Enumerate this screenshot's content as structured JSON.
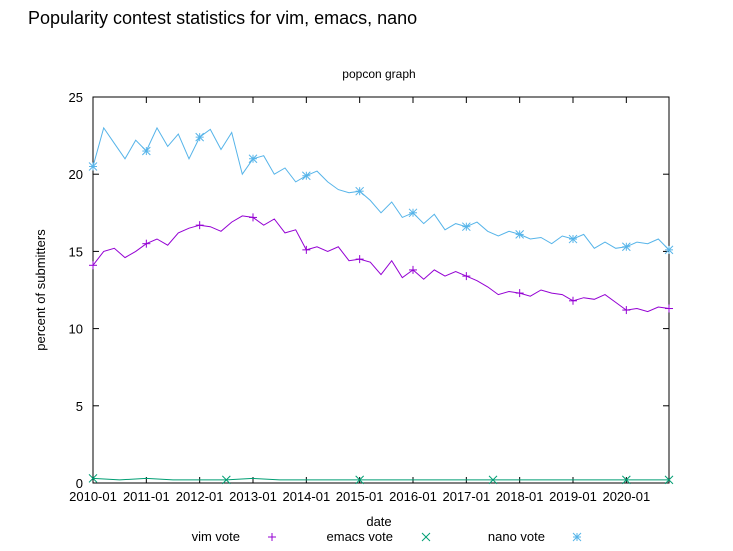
{
  "page": {
    "heading": "Popularity contest statistics for vim, emacs, nano"
  },
  "chart_data": {
    "type": "line",
    "title": "popcon graph",
    "xlabel": "date",
    "ylabel": "percent of submitters",
    "ylim": [
      0,
      25
    ],
    "xlim": [
      2010.0,
      2020.8
    ],
    "grid": false,
    "legend_placement": "bottom",
    "yticks": [
      0,
      5,
      10,
      15,
      20,
      25
    ],
    "xticks": [
      {
        "value": 2010,
        "label": "2010-01"
      },
      {
        "value": 2011,
        "label": "2011-01"
      },
      {
        "value": 2012,
        "label": "2012-01"
      },
      {
        "value": 2013,
        "label": "2013-01"
      },
      {
        "value": 2014,
        "label": "2014-01"
      },
      {
        "value": 2015,
        "label": "2015-01"
      },
      {
        "value": 2016,
        "label": "2016-01"
      },
      {
        "value": 2017,
        "label": "2017-01"
      },
      {
        "value": 2018,
        "label": "2018-01"
      },
      {
        "value": 2019,
        "label": "2019-01"
      },
      {
        "value": 2020,
        "label": "2020-01"
      }
    ],
    "series": [
      {
        "name": "vim vote",
        "color": "#9400d3",
        "marker": "plus",
        "x": [
          2010.0,
          2010.2,
          2010.4,
          2010.6,
          2010.8,
          2011.0,
          2011.2,
          2011.4,
          2011.6,
          2011.8,
          2012.0,
          2012.2,
          2012.4,
          2012.6,
          2012.8,
          2013.0,
          2013.2,
          2013.4,
          2013.6,
          2013.8,
          2014.0,
          2014.2,
          2014.4,
          2014.6,
          2014.8,
          2015.0,
          2015.2,
          2015.4,
          2015.6,
          2015.8,
          2016.0,
          2016.2,
          2016.4,
          2016.6,
          2016.8,
          2017.0,
          2017.2,
          2017.4,
          2017.6,
          2017.8,
          2018.0,
          2018.2,
          2018.4,
          2018.6,
          2018.8,
          2019.0,
          2019.2,
          2019.4,
          2019.6,
          2019.8,
          2020.0,
          2020.2,
          2020.4,
          2020.6,
          2020.8
        ],
        "y": [
          14.1,
          15.0,
          15.2,
          14.6,
          15.0,
          15.5,
          15.8,
          15.4,
          16.2,
          16.5,
          16.7,
          16.6,
          16.3,
          16.9,
          17.3,
          17.2,
          16.7,
          17.1,
          16.2,
          16.4,
          15.1,
          15.3,
          15.0,
          15.3,
          14.4,
          14.5,
          14.3,
          13.5,
          14.4,
          13.3,
          13.8,
          13.2,
          13.8,
          13.4,
          13.7,
          13.4,
          13.1,
          12.7,
          12.2,
          12.4,
          12.3,
          12.1,
          12.5,
          12.3,
          12.2,
          11.8,
          12.0,
          11.9,
          12.2,
          11.7,
          11.2,
          11.3,
          11.1,
          11.4,
          11.3
        ]
      },
      {
        "name": "emacs vote",
        "color": "#009e73",
        "marker": "cross",
        "x": [
          2010.0,
          2010.5,
          2011.0,
          2011.5,
          2012.0,
          2012.5,
          2013.0,
          2013.5,
          2014.0,
          2014.5,
          2015.0,
          2015.5,
          2016.0,
          2016.5,
          2017.0,
          2017.5,
          2018.0,
          2018.5,
          2019.0,
          2019.5,
          2020.0,
          2020.5,
          2020.8
        ],
        "y": [
          0.3,
          0.2,
          0.3,
          0.2,
          0.2,
          0.2,
          0.3,
          0.2,
          0.2,
          0.2,
          0.2,
          0.2,
          0.2,
          0.2,
          0.2,
          0.2,
          0.2,
          0.2,
          0.2,
          0.2,
          0.2,
          0.2,
          0.2
        ]
      },
      {
        "name": "nano vote",
        "color": "#56b4e9",
        "marker": "star",
        "x": [
          2010.0,
          2010.2,
          2010.4,
          2010.6,
          2010.8,
          2011.0,
          2011.2,
          2011.4,
          2011.6,
          2011.8,
          2012.0,
          2012.2,
          2012.4,
          2012.6,
          2012.8,
          2013.0,
          2013.2,
          2013.4,
          2013.6,
          2013.8,
          2014.0,
          2014.2,
          2014.4,
          2014.6,
          2014.8,
          2015.0,
          2015.2,
          2015.4,
          2015.6,
          2015.8,
          2016.0,
          2016.2,
          2016.4,
          2016.6,
          2016.8,
          2017.0,
          2017.2,
          2017.4,
          2017.6,
          2017.8,
          2018.0,
          2018.2,
          2018.4,
          2018.6,
          2018.8,
          2019.0,
          2019.2,
          2019.4,
          2019.6,
          2019.8,
          2020.0,
          2020.2,
          2020.4,
          2020.6,
          2020.8
        ],
        "y": [
          20.5,
          23.0,
          22.0,
          21.0,
          22.2,
          21.5,
          23.0,
          21.8,
          22.6,
          21.0,
          22.4,
          22.9,
          21.6,
          22.7,
          20.0,
          21.0,
          21.2,
          20.0,
          20.4,
          19.5,
          19.9,
          20.2,
          19.5,
          19.0,
          18.8,
          18.9,
          18.3,
          17.5,
          18.2,
          17.2,
          17.5,
          16.8,
          17.4,
          16.4,
          16.8,
          16.6,
          16.9,
          16.3,
          16.0,
          16.3,
          16.1,
          15.8,
          15.9,
          15.5,
          16.0,
          15.8,
          16.1,
          15.2,
          15.6,
          15.2,
          15.3,
          15.6,
          15.5,
          15.8,
          15.1
        ]
      }
    ]
  }
}
